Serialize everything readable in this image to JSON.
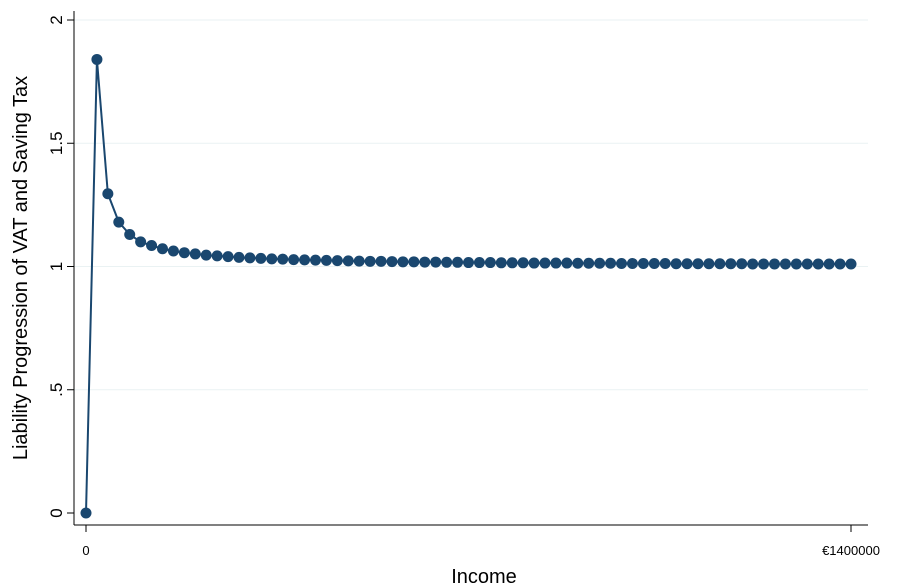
{
  "chart_data": {
    "type": "line",
    "xlabel": "Income",
    "ylabel": "Liability Progression of VAT and Saving Tax",
    "xlim": [
      0,
      1400000
    ],
    "ylim": [
      0,
      2
    ],
    "y_ticks": [
      "0",
      ".5",
      "1",
      "1.5",
      "2"
    ],
    "x_ticks": [
      "0",
      "€1400000"
    ],
    "grid": true,
    "marker": "circle",
    "line_color": "#1a476f",
    "x": [
      0,
      20000,
      40000,
      60000,
      80000,
      100000,
      120000,
      140000,
      160000,
      180000,
      200000,
      220000,
      240000,
      260000,
      280000,
      300000,
      320000,
      340000,
      360000,
      380000,
      400000,
      420000,
      440000,
      460000,
      480000,
      500000,
      520000,
      540000,
      560000,
      580000,
      600000,
      620000,
      640000,
      660000,
      680000,
      700000,
      720000,
      740000,
      760000,
      780000,
      800000,
      820000,
      840000,
      860000,
      880000,
      900000,
      920000,
      940000,
      960000,
      980000,
      1000000,
      1020000,
      1040000,
      1060000,
      1080000,
      1100000,
      1120000,
      1140000,
      1160000,
      1180000,
      1200000,
      1220000,
      1240000,
      1260000,
      1280000,
      1300000,
      1320000,
      1340000,
      1360000,
      1380000,
      1400000
    ],
    "values": [
      0,
      1.84,
      1.295,
      1.18,
      1.13,
      1.1,
      1.085,
      1.072,
      1.063,
      1.056,
      1.051,
      1.046,
      1.043,
      1.04,
      1.037,
      1.035,
      1.033,
      1.031,
      1.03,
      1.028,
      1.027,
      1.026,
      1.025,
      1.024,
      1.023,
      1.022,
      1.021,
      1.021,
      1.02,
      1.019,
      1.019,
      1.018,
      1.018,
      1.017,
      1.017,
      1.016,
      1.016,
      1.016,
      1.015,
      1.015,
      1.015,
      1.014,
      1.014,
      1.014,
      1.014,
      1.013,
      1.013,
      1.013,
      1.013,
      1.012,
      1.012,
      1.012,
      1.012,
      1.012,
      1.011,
      1.011,
      1.011,
      1.011,
      1.011,
      1.011,
      1.011,
      1.01,
      1.01,
      1.01,
      1.01,
      1.01,
      1.01,
      1.01,
      1.01,
      1.01,
      1.01
    ]
  }
}
